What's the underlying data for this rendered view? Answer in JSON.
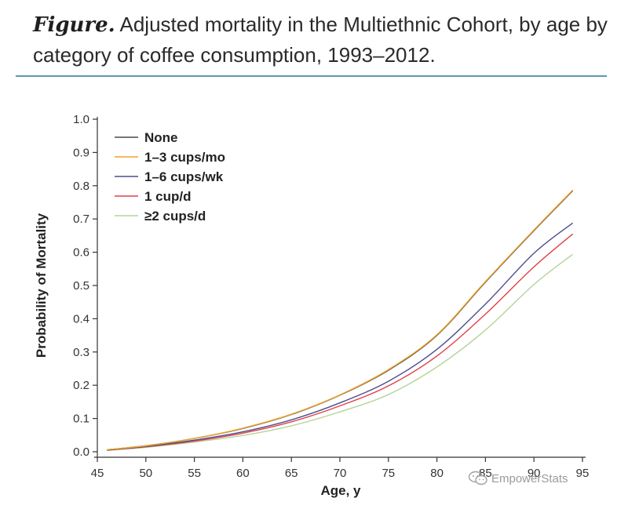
{
  "caption": {
    "lead": "Figure.",
    "text": " Adjusted mortality in the Multiethnic Cohort, by age by category of coffee consumption, 1993–2012."
  },
  "watermark": {
    "text": "EmpowerStats",
    "icon": "wechat-icon"
  },
  "chart_data": {
    "type": "line",
    "title": "",
    "xlabel": "Age, y",
    "ylabel": "Probability of Mortality",
    "xlim": [
      45,
      95
    ],
    "ylim": [
      0,
      1.0
    ],
    "xticks": [
      45,
      50,
      55,
      60,
      65,
      70,
      75,
      80,
      85,
      90,
      95
    ],
    "yticks": [
      0.0,
      0.1,
      0.2,
      0.3,
      0.4,
      0.5,
      0.6,
      0.7,
      0.8,
      0.9,
      1.0
    ],
    "xtick_labels": [
      "45",
      "50",
      "55",
      "60",
      "65",
      "70",
      "75",
      "80",
      "85",
      "90",
      "95"
    ],
    "ytick_labels": [
      "0.0",
      "0.1",
      "0.2",
      "0.3",
      "0.4",
      "0.5",
      "0.6",
      "0.7",
      "0.8",
      "0.9",
      "1.0"
    ],
    "grid": false,
    "legend_position": "top-left",
    "x": [
      46,
      50,
      55,
      60,
      65,
      70,
      75,
      80,
      85,
      90,
      94
    ],
    "series": [
      {
        "name": "None",
        "color": "#4a4a4a",
        "values": [
          0.006,
          0.018,
          0.04,
          0.07,
          0.112,
          0.17,
          0.245,
          0.35,
          0.51,
          0.665,
          0.785
        ]
      },
      {
        "name": "1–3 cups/mo",
        "color": "#f0a42a",
        "values": [
          0.006,
          0.018,
          0.04,
          0.071,
          0.113,
          0.171,
          0.247,
          0.352,
          0.512,
          0.667,
          0.787
        ]
      },
      {
        "name": "1–6 cups/wk",
        "color": "#4b4f8e",
        "values": [
          0.005,
          0.016,
          0.035,
          0.06,
          0.096,
          0.147,
          0.212,
          0.308,
          0.444,
          0.597,
          0.688
        ]
      },
      {
        "name": "1 cup/d",
        "color": "#e0404a",
        "values": [
          0.005,
          0.015,
          0.032,
          0.056,
          0.09,
          0.138,
          0.198,
          0.288,
          0.414,
          0.556,
          0.655
        ]
      },
      {
        "name": "≥2 cups/d",
        "color": "#b5d39a",
        "values": [
          0.004,
          0.013,
          0.029,
          0.049,
          0.078,
          0.12,
          0.172,
          0.255,
          0.366,
          0.503,
          0.594
        ]
      }
    ]
  }
}
